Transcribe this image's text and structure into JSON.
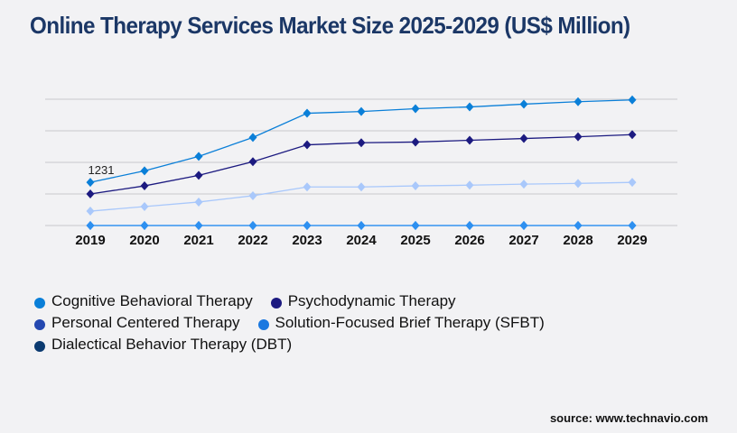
{
  "title": "Online Therapy Services Market Size 2025-2029 (US$ Million)",
  "source": "source: www.technavio.com",
  "chart_data": {
    "type": "line",
    "title": "Online Therapy Services Market Size 2025-2029 (US$ Million)",
    "xlabel": "",
    "ylabel": "",
    "categories": [
      "2019",
      "2020",
      "2021",
      "2022",
      "2023",
      "2024",
      "2025",
      "2026",
      "2027",
      "2028",
      "2029"
    ],
    "ylim": [
      0,
      3600
    ],
    "grid": true,
    "legend_position": "bottom",
    "annotations": [
      {
        "series": "Cognitive Behavioral Therapy",
        "category": "2019",
        "text": "1231"
      }
    ],
    "series": [
      {
        "name": "Cognitive Behavioral Therapy",
        "legend_color": "#0a7fd8",
        "line_color": "#0a7fd8",
        "values": [
          1231,
          1560,
          1970,
          2510,
          3200,
          3250,
          3330,
          3380,
          3460,
          3530,
          3580
        ]
      },
      {
        "name": "Psychodynamic Therapy",
        "legend_color": "#1c1a80",
        "line_color": "#1c1a80",
        "values": [
          900,
          1130,
          1430,
          1820,
          2300,
          2360,
          2380,
          2430,
          2480,
          2530,
          2590
        ]
      },
      {
        "name": "Personal Centered Therapy",
        "legend_color": "#2448b0",
        "line_color": "#a9c8fb",
        "values": [
          410,
          540,
          670,
          850,
          1100,
          1100,
          1130,
          1150,
          1180,
          1200,
          1230
        ]
      },
      {
        "name": "Solution-Focused Brief Therapy (SFBT)",
        "legend_color": "#1a78e0",
        "line_color": "#2e90f0",
        "values": [
          0,
          0,
          0,
          0,
          0,
          0,
          0,
          0,
          0,
          0,
          0
        ]
      },
      {
        "name": "Dialectical Behavior Therapy (DBT)",
        "legend_color": "#0b3a70",
        "line_color": "#2e90f0",
        "values": [
          0,
          0,
          0,
          0,
          0,
          0,
          0,
          0,
          0,
          0,
          0
        ]
      }
    ]
  }
}
